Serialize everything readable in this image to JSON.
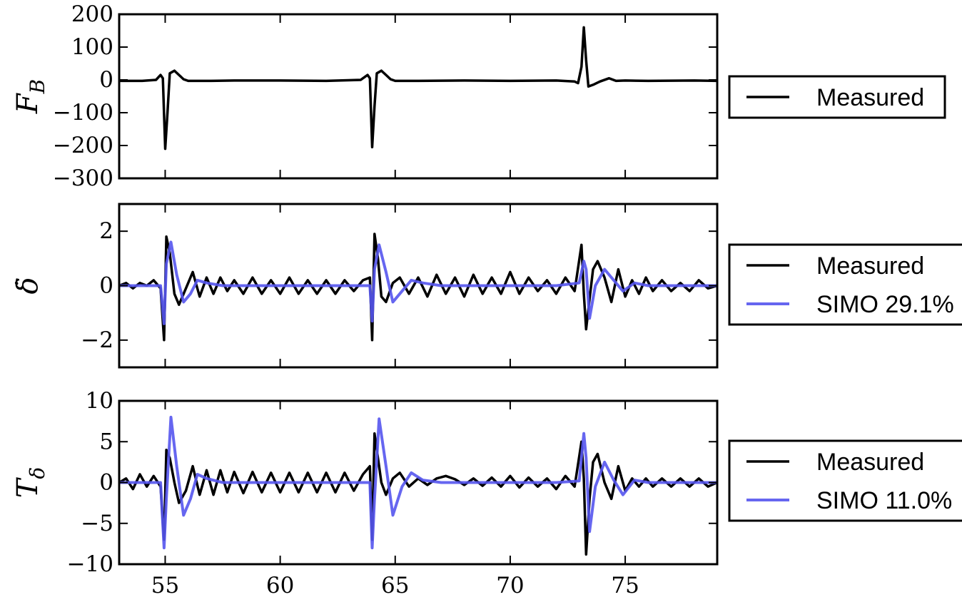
{
  "chart_data": [
    {
      "type": "line",
      "ylabel": "F_B",
      "xlim": [
        53,
        79
      ],
      "ylim": [
        -300,
        200
      ],
      "yticks": [
        200,
        100,
        0,
        -100,
        -200,
        -300
      ],
      "ytick_labels": [
        "200",
        "100",
        "0",
        "−100",
        "−200",
        "−300"
      ],
      "legend": {
        "placement": "right",
        "entries": [
          "Measured"
        ]
      },
      "series": [
        {
          "name": "Measured",
          "color": "#000000",
          "x": [
            53,
            54,
            54.6,
            54.8,
            54.9,
            55.0,
            55.1,
            55.2,
            55.4,
            55.6,
            55.8,
            56,
            57,
            58,
            60,
            62,
            63.5,
            63.8,
            63.9,
            64.0,
            64.1,
            64.2,
            64.4,
            64.6,
            64.8,
            65,
            66,
            68,
            70,
            72,
            72.8,
            72.95,
            73.1,
            73.2,
            73.3,
            73.4,
            73.6,
            73.9,
            74.3,
            74.6,
            75,
            76,
            78,
            79
          ],
          "y": [
            -3,
            -3,
            0,
            15,
            5,
            -210,
            -100,
            20,
            28,
            15,
            2,
            -3,
            -3,
            -2,
            -2,
            -3,
            0,
            15,
            5,
            -205,
            -80,
            20,
            28,
            15,
            2,
            -3,
            -3,
            -2,
            -3,
            -2,
            -5,
            -10,
            40,
            160,
            60,
            -20,
            -15,
            -5,
            5,
            -3,
            -2,
            -3,
            -2,
            -3
          ]
        }
      ]
    },
    {
      "type": "line",
      "ylabel": "δ̇",
      "xlim": [
        53,
        79
      ],
      "ylim": [
        -3,
        3
      ],
      "yticks": [
        2,
        0,
        -2
      ],
      "ytick_labels": [
        "2",
        "0",
        "−2"
      ],
      "legend": {
        "placement": "right",
        "entries": [
          "Measured",
          "SIMO 29.1%"
        ]
      },
      "series": [
        {
          "name": "Measured",
          "color": "#000000",
          "x": [
            53,
            53.3,
            53.6,
            53.9,
            54.2,
            54.5,
            54.8,
            54.95,
            55.05,
            55.2,
            55.4,
            55.6,
            55.9,
            56.2,
            56.5,
            56.8,
            57.1,
            57.4,
            57.7,
            58,
            58.4,
            58.8,
            59.2,
            59.6,
            60,
            60.4,
            60.8,
            61.2,
            61.6,
            62,
            62.4,
            62.8,
            63.2,
            63.6,
            63.9,
            64.0,
            64.1,
            64.25,
            64.4,
            64.6,
            64.9,
            65.2,
            65.6,
            66,
            66.4,
            66.8,
            67.2,
            67.6,
            68,
            68.4,
            68.8,
            69.2,
            69.6,
            70,
            70.4,
            70.8,
            71.2,
            71.6,
            72,
            72.4,
            72.8,
            73.1,
            73.2,
            73.3,
            73.45,
            73.6,
            73.8,
            74.1,
            74.4,
            74.7,
            75,
            75.3,
            75.6,
            75.9,
            76.2,
            76.6,
            77,
            77.4,
            77.8,
            78.2,
            78.6,
            79
          ],
          "y": [
            0,
            0.1,
            -0.1,
            0.1,
            0,
            0.2,
            -0.1,
            -2.0,
            1.8,
            1.2,
            -0.3,
            -0.7,
            -0.1,
            0.5,
            -0.4,
            0.3,
            -0.3,
            0.3,
            -0.2,
            0.2,
            -0.3,
            0.3,
            -0.3,
            0.2,
            -0.3,
            0.3,
            -0.3,
            0.2,
            -0.3,
            0.2,
            -0.3,
            0.2,
            -0.2,
            0.2,
            0.3,
            -2.0,
            1.9,
            1.0,
            -0.4,
            -0.6,
            0.1,
            0.3,
            -0.3,
            0.3,
            -0.4,
            0.4,
            -0.3,
            0.3,
            -0.4,
            0.4,
            -0.3,
            0.3,
            -0.3,
            0.5,
            -0.3,
            0.3,
            -0.2,
            0.2,
            -0.3,
            0.3,
            -0.2,
            1.5,
            -0.3,
            -1.6,
            -0.5,
            0.6,
            0.9,
            0.3,
            -0.6,
            0.6,
            -0.4,
            0.2,
            -0.3,
            0.3,
            -0.2,
            0.2,
            -0.2,
            0.1,
            -0.2,
            0.2,
            -0.1,
            0
          ]
        },
        {
          "name": "SIMO 29.1%",
          "color": "#5555ee",
          "x": [
            53,
            54,
            54.8,
            54.95,
            55.05,
            55.25,
            55.5,
            55.8,
            56.1,
            56.4,
            56.8,
            57.5,
            60,
            63,
            63.9,
            64.0,
            64.1,
            64.3,
            64.6,
            64.9,
            65.3,
            65.7,
            66.2,
            67,
            70,
            72,
            73.0,
            73.2,
            73.3,
            73.45,
            73.7,
            74.1,
            74.5,
            74.9,
            75.4,
            76,
            79
          ],
          "y": [
            0,
            0,
            0,
            -1.4,
            0.8,
            1.6,
            0.4,
            -0.6,
            -0.3,
            0.2,
            0.1,
            0,
            0,
            0,
            0,
            -1.3,
            0.6,
            1.5,
            0.5,
            -0.6,
            -0.2,
            0.2,
            0.1,
            0,
            0,
            0,
            0.1,
            0.9,
            0.6,
            -1.2,
            0.0,
            0.6,
            0.2,
            -0.2,
            0.1,
            0,
            0
          ]
        }
      ]
    },
    {
      "type": "line",
      "ylabel": "T_δ",
      "xlabel": "",
      "xlim": [
        53,
        79
      ],
      "ylim": [
        -10,
        10
      ],
      "xticks": [
        55,
        60,
        65,
        70,
        75
      ],
      "yticks": [
        10,
        5,
        0,
        -5,
        -10
      ],
      "ytick_labels": [
        "10",
        "5",
        "0",
        "−5",
        "−10"
      ],
      "legend": {
        "placement": "right",
        "entries": [
          "Measured",
          "SIMO 11.0%"
        ]
      },
      "series": [
        {
          "name": "Measured",
          "color": "#000000",
          "x": [
            53,
            53.3,
            53.6,
            53.9,
            54.2,
            54.5,
            54.8,
            54.95,
            55.05,
            55.2,
            55.4,
            55.6,
            55.9,
            56.2,
            56.5,
            56.8,
            57.1,
            57.4,
            57.7,
            58,
            58.4,
            58.8,
            59.2,
            59.6,
            60,
            60.4,
            60.8,
            61.2,
            61.6,
            62,
            62.4,
            62.8,
            63.2,
            63.6,
            63.9,
            64.0,
            64.1,
            64.25,
            64.4,
            64.6,
            64.9,
            65.2,
            65.6,
            66,
            66.4,
            66.8,
            67.2,
            67.6,
            68,
            68.4,
            68.8,
            69.2,
            69.6,
            70,
            70.4,
            70.8,
            71.2,
            71.6,
            72,
            72.4,
            72.8,
            73.1,
            73.2,
            73.3,
            73.45,
            73.6,
            73.8,
            74.1,
            74.4,
            74.7,
            75,
            75.3,
            75.6,
            75.9,
            76.2,
            76.6,
            77,
            77.4,
            77.8,
            78.2,
            78.6,
            79
          ],
          "y": [
            0,
            0.5,
            -0.8,
            1,
            -0.5,
            0.8,
            -0.5,
            -7,
            4,
            3,
            0,
            -2.5,
            -1,
            2,
            -1.5,
            1.5,
            -1.5,
            1.5,
            -1.2,
            1.3,
            -1.3,
            1.3,
            -1.2,
            1.2,
            -1.2,
            1.2,
            -1.2,
            1.2,
            -1.2,
            1.2,
            -1.2,
            1.2,
            -1,
            1,
            2,
            -7,
            6,
            3,
            0,
            -1.5,
            0.5,
            1.2,
            -0.5,
            0.5,
            -0.3,
            0.5,
            0.8,
            0.4,
            -0.3,
            0.5,
            -0.4,
            0.6,
            -0.5,
            0.8,
            -0.6,
            0.6,
            -0.5,
            0.5,
            -0.8,
            0.8,
            -0.5,
            5,
            0.5,
            -8.8,
            -2,
            2.5,
            3.5,
            0,
            -2,
            2,
            -1,
            0.5,
            -0.5,
            0.5,
            -0.5,
            0.5,
            -0.5,
            0.5,
            -0.5,
            0.5,
            -0.5,
            0
          ]
        },
        {
          "name": "SIMO 11.0%",
          "color": "#5555ee",
          "x": [
            53,
            54,
            54.8,
            54.95,
            55.05,
            55.25,
            55.5,
            55.8,
            56.1,
            56.4,
            56.8,
            57.5,
            60,
            63,
            63.9,
            64.0,
            64.1,
            64.3,
            64.6,
            64.9,
            65.3,
            65.7,
            66.2,
            67,
            70,
            72,
            73.0,
            73.2,
            73.3,
            73.45,
            73.7,
            74.1,
            74.5,
            74.9,
            75.4,
            76,
            79
          ],
          "y": [
            0,
            0,
            0,
            -8,
            -2,
            8,
            2,
            -4,
            -2,
            1,
            0.5,
            0,
            0,
            0,
            0,
            -8,
            -2,
            7.8,
            2,
            -4,
            -0.5,
            1.2,
            0.3,
            0,
            0,
            0,
            0.2,
            6,
            3,
            -6,
            -0.5,
            2.5,
            0.3,
            -1.5,
            0.3,
            0,
            0
          ]
        }
      ]
    }
  ]
}
